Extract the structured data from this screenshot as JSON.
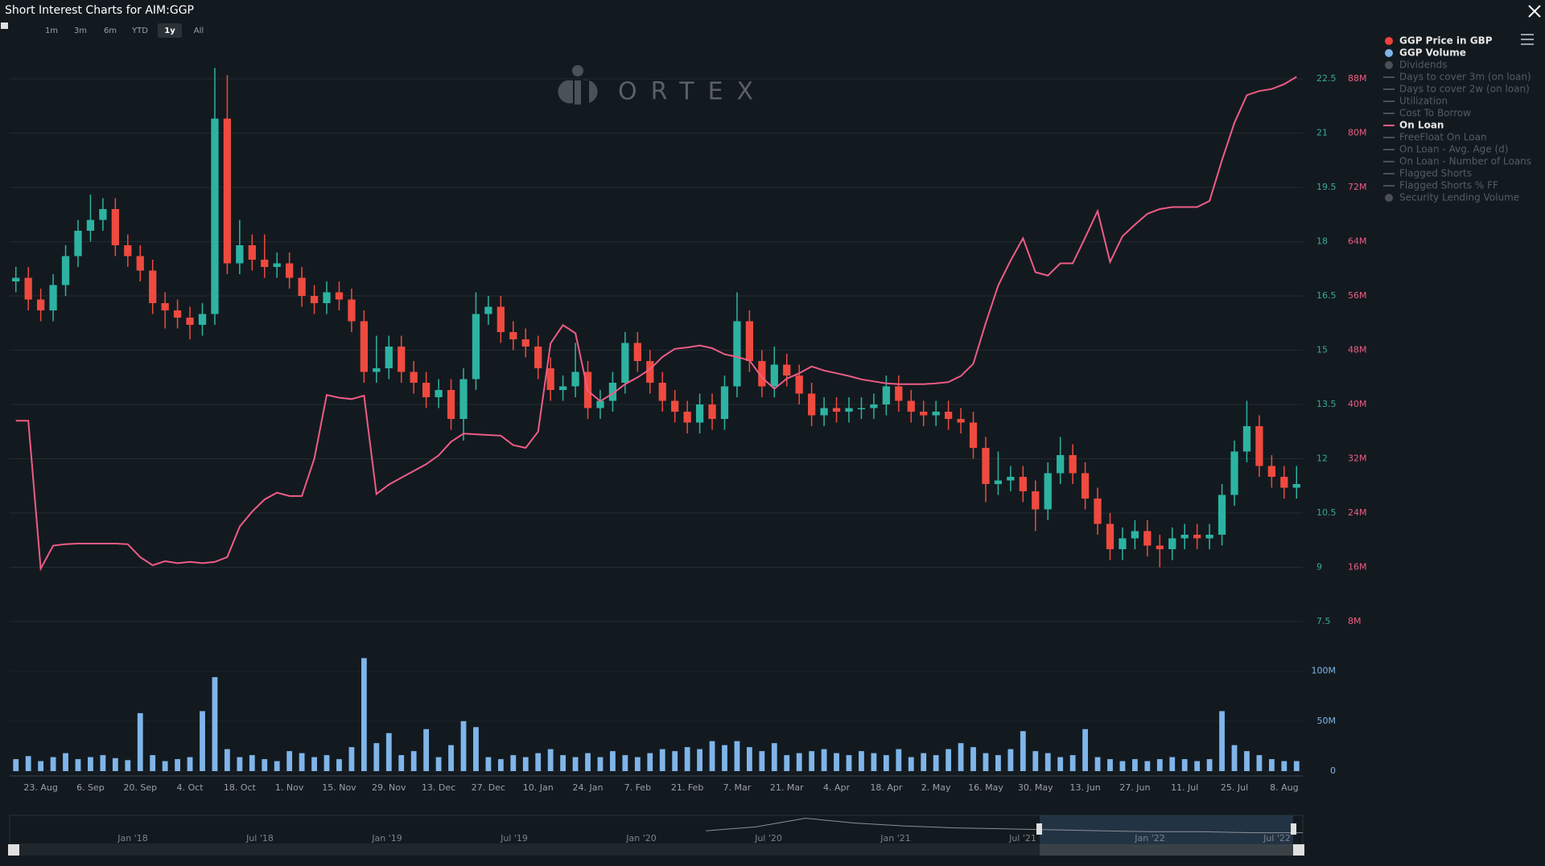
{
  "chart_data": {
    "type": "candlestick",
    "title": "Short Interest Charts for AIM:GGP",
    "watermark": "ORTEX",
    "range_buttons": [
      "1m",
      "3m",
      "6m",
      "YTD",
      "1y",
      "All"
    ],
    "selected_range": "1y",
    "categories": [
      null,
      null,
      "23. Aug",
      null,
      null,
      null,
      "6. Sep",
      null,
      null,
      null,
      "20. Sep",
      null,
      null,
      null,
      "4. Oct",
      null,
      null,
      null,
      "18. Oct",
      null,
      null,
      null,
      "1. Nov",
      null,
      null,
      null,
      "15. Nov",
      null,
      null,
      null,
      "29. Nov",
      null,
      null,
      null,
      "13. Dec",
      null,
      null,
      null,
      "27. Dec",
      null,
      null,
      null,
      "10. Jan",
      null,
      null,
      null,
      "24. Jan",
      null,
      null,
      null,
      "7. Feb",
      null,
      null,
      null,
      "21. Feb",
      null,
      null,
      null,
      "7. Mar",
      null,
      null,
      null,
      "21. Mar",
      null,
      null,
      null,
      "4. Apr",
      null,
      null,
      null,
      "18. Apr",
      null,
      null,
      null,
      "2. May",
      null,
      null,
      null,
      "16. May",
      null,
      null,
      null,
      "30. May",
      null,
      null,
      null,
      "13. Jun",
      null,
      null,
      null,
      "27. Jun",
      null,
      null,
      null,
      "11. Jul",
      null,
      null,
      null,
      "25. Jul",
      null,
      null,
      null,
      "8. Aug",
      null
    ],
    "series": [
      {
        "name": "GGP Price in GBP",
        "type": "candlestick",
        "color": "#f0413a",
        "up_color": "#2db3a2",
        "down_color": "#ef4a3f",
        "open": [
          16.9,
          17.0,
          16.4,
          16.1,
          16.8,
          17.6,
          18.3,
          18.6,
          18.9,
          17.9,
          17.6,
          17.2,
          16.3,
          16.1,
          15.9,
          15.7,
          16.0,
          21.4,
          17.4,
          17.9,
          17.5,
          17.3,
          17.4,
          17.0,
          16.5,
          16.3,
          16.6,
          16.4,
          15.8,
          14.4,
          14.5,
          15.1,
          14.4,
          14.1,
          13.7,
          13.9,
          13.1,
          14.2,
          16.0,
          16.2,
          15.5,
          15.3,
          15.1,
          14.5,
          13.9,
          14.0,
          14.4,
          13.4,
          13.6,
          14.1,
          15.2,
          14.7,
          14.1,
          13.6,
          13.3,
          13.0,
          13.5,
          13.1,
          14.0,
          15.8,
          14.7,
          14.0,
          14.6,
          14.3,
          13.8,
          13.2,
          13.4,
          13.3,
          13.4,
          13.4,
          13.5,
          14.0,
          13.6,
          13.3,
          13.2,
          13.3,
          13.1,
          13.0,
          12.3,
          11.3,
          11.4,
          11.5,
          11.1,
          10.6,
          11.6,
          12.1,
          11.6,
          10.9,
          10.2,
          9.5,
          9.8,
          10.0,
          9.6,
          9.5,
          9.8,
          9.9,
          9.8,
          9.9,
          11.0,
          12.2,
          12.9,
          11.8,
          11.5,
          11.2
        ],
        "high": [
          17.3,
          17.3,
          16.7,
          17.1,
          17.9,
          18.6,
          19.3,
          19.2,
          19.2,
          18.2,
          17.9,
          17.5,
          16.6,
          16.4,
          16.2,
          16.3,
          22.8,
          22.6,
          18.6,
          18.2,
          18.2,
          17.7,
          17.7,
          17.3,
          16.8,
          16.9,
          16.9,
          16.7,
          16.1,
          15.4,
          15.4,
          15.4,
          14.7,
          14.4,
          14.2,
          14.2,
          14.5,
          16.6,
          16.5,
          16.5,
          15.8,
          15.6,
          15.4,
          14.8,
          14.3,
          15.2,
          14.7,
          13.9,
          14.4,
          15.5,
          15.5,
          15.0,
          14.4,
          13.9,
          13.6,
          13.8,
          13.8,
          14.3,
          16.6,
          16.1,
          15.0,
          15.1,
          14.9,
          14.6,
          14.1,
          13.7,
          13.7,
          13.7,
          13.7,
          13.8,
          14.3,
          14.3,
          13.9,
          13.6,
          13.6,
          13.6,
          13.4,
          13.3,
          12.6,
          12.2,
          11.8,
          11.8,
          11.4,
          11.9,
          12.6,
          12.4,
          11.9,
          11.2,
          10.5,
          10.1,
          10.3,
          10.3,
          9.9,
          10.1,
          10.2,
          10.2,
          10.2,
          11.3,
          12.5,
          13.6,
          13.2,
          12.1,
          11.8,
          11.8
        ],
        "low": [
          16.6,
          16.1,
          15.8,
          15.8,
          16.5,
          17.3,
          18.0,
          18.3,
          17.6,
          17.3,
          16.9,
          16.0,
          15.6,
          15.6,
          15.3,
          15.4,
          15.7,
          17.1,
          17.1,
          17.2,
          17.0,
          17.0,
          16.7,
          16.2,
          16.0,
          16.0,
          16.1,
          15.5,
          14.1,
          14.1,
          14.2,
          14.1,
          13.8,
          13.4,
          13.4,
          12.8,
          12.5,
          13.9,
          15.7,
          15.2,
          15.0,
          14.8,
          14.2,
          13.6,
          13.6,
          13.7,
          13.1,
          13.1,
          13.3,
          13.8,
          14.4,
          13.8,
          13.3,
          13.0,
          12.7,
          12.7,
          12.8,
          12.8,
          13.7,
          14.4,
          13.7,
          13.7,
          14.0,
          13.5,
          12.9,
          12.9,
          13.0,
          13.0,
          13.1,
          13.1,
          13.2,
          13.3,
          13.0,
          12.9,
          12.9,
          12.8,
          12.7,
          12.0,
          10.8,
          11.0,
          11.1,
          10.8,
          10.0,
          10.3,
          11.3,
          11.3,
          10.6,
          9.9,
          9.2,
          9.2,
          9.5,
          9.3,
          9.0,
          9.2,
          9.5,
          9.5,
          9.5,
          9.6,
          10.7,
          11.9,
          11.5,
          11.2,
          10.9,
          10.9
        ],
        "close": [
          17.0,
          16.4,
          16.1,
          16.8,
          17.6,
          18.3,
          18.6,
          18.9,
          17.9,
          17.6,
          17.2,
          16.3,
          16.1,
          15.9,
          15.7,
          16.0,
          21.4,
          17.4,
          17.9,
          17.5,
          17.3,
          17.4,
          17.0,
          16.5,
          16.3,
          16.6,
          16.4,
          15.8,
          14.4,
          14.5,
          15.1,
          14.4,
          14.1,
          13.7,
          13.9,
          13.1,
          14.2,
          16.0,
          16.2,
          15.5,
          15.3,
          15.1,
          14.5,
          13.9,
          14.0,
          14.4,
          13.4,
          13.6,
          14.1,
          15.2,
          14.7,
          14.1,
          13.6,
          13.3,
          13.0,
          13.5,
          13.1,
          14.0,
          15.8,
          14.7,
          14.0,
          14.6,
          14.3,
          13.8,
          13.2,
          13.4,
          13.3,
          13.4,
          13.4,
          13.5,
          14.0,
          13.6,
          13.3,
          13.2,
          13.3,
          13.1,
          13.0,
          12.3,
          11.3,
          11.4,
          11.5,
          11.1,
          10.6,
          11.6,
          12.1,
          11.6,
          10.9,
          10.2,
          9.5,
          9.8,
          10.0,
          9.6,
          9.5,
          9.8,
          9.9,
          9.8,
          9.9,
          11.0,
          12.2,
          12.9,
          11.8,
          11.5,
          11.2,
          11.3
        ]
      },
      {
        "name": "GGP Volume",
        "type": "bar",
        "axis": "y3",
        "color": "#7fb5ea",
        "values": [
          12,
          15,
          10,
          14,
          18,
          12,
          14,
          16,
          13,
          11,
          58,
          16,
          10,
          12,
          14,
          60,
          94,
          22,
          14,
          16,
          12,
          10,
          20,
          18,
          14,
          16,
          12,
          24,
          113,
          28,
          38,
          16,
          20,
          42,
          14,
          26,
          50,
          44,
          14,
          12,
          16,
          14,
          18,
          22,
          16,
          14,
          18,
          14,
          20,
          16,
          14,
          18,
          22,
          20,
          24,
          22,
          30,
          26,
          30,
          24,
          20,
          28,
          16,
          18,
          20,
          22,
          18,
          16,
          20,
          18,
          16,
          22,
          14,
          18,
          16,
          22,
          28,
          24,
          18,
          16,
          22,
          40,
          20,
          18,
          14,
          16,
          42,
          14,
          12,
          10,
          12,
          10,
          12,
          14,
          12,
          10,
          12,
          60,
          26,
          20,
          16,
          12,
          10,
          10
        ]
      },
      {
        "name": "On Loan",
        "type": "line",
        "axis": "y2",
        "color": "#ee5c86",
        "values": [
          37.6,
          37.6,
          15.8,
          19.2,
          19.4,
          19.5,
          19.5,
          19.5,
          19.5,
          19.4,
          17.5,
          16.3,
          16.9,
          16.6,
          16.8,
          16.6,
          16.8,
          17.5,
          22.0,
          24.2,
          26.0,
          27.0,
          26.5,
          26.5,
          32.0,
          41.4,
          41.0,
          40.8,
          41.3,
          26.8,
          28.2,
          29.2,
          30.2,
          31.2,
          32.5,
          34.5,
          35.7,
          35.6,
          35.5,
          35.4,
          34.0,
          33.6,
          36.0,
          49.0,
          51.7,
          50.5,
          42.0,
          40.5,
          41.6,
          43.0,
          44.0,
          45.2,
          47.0,
          48.2,
          48.4,
          48.7,
          48.3,
          47.4,
          47.0,
          46.5,
          44.0,
          42.3,
          43.8,
          44.6,
          45.6,
          45.0,
          44.6,
          44.2,
          43.7,
          43.4,
          43.1,
          43.0,
          43.0,
          43.0,
          43.1,
          43.3,
          44.2,
          46.0,
          52.0,
          57.5,
          61.2,
          64.5,
          59.5,
          59.0,
          60.8,
          60.8,
          64.6,
          68.5,
          61.0,
          64.8,
          66.5,
          68.1,
          68.8,
          69.1,
          69.1,
          69.1,
          70.0,
          76.0,
          81.5,
          85.6,
          86.2,
          86.5,
          87.2,
          88.3
        ]
      }
    ],
    "inactive_series": [
      {
        "name": "Dividends",
        "symbol": "dot"
      },
      {
        "name": "Days to cover 3m (on loan)",
        "symbol": "line"
      },
      {
        "name": "Days to cover 2w (on loan)",
        "symbol": "line"
      },
      {
        "name": "Utilization",
        "symbol": "line"
      },
      {
        "name": "Cost To Borrow",
        "symbol": "line"
      },
      {
        "name": "FreeFloat On Loan",
        "symbol": "line"
      },
      {
        "name": "On Loan - Avg. Age (d)",
        "symbol": "line"
      },
      {
        "name": "On Loan - Number of Loans",
        "symbol": "line"
      },
      {
        "name": "Flagged Shorts",
        "symbol": "line"
      },
      {
        "name": "Flagged Shorts % FF",
        "symbol": "line"
      },
      {
        "name": "Security Lending Volume",
        "symbol": "dot"
      }
    ],
    "legend": "right",
    "grid": true,
    "ylim": [
      7.5,
      24.3
    ],
    "yticks": [
      7.5,
      9,
      10.5,
      12,
      13.5,
      15,
      16.5,
      18,
      19.5,
      21,
      22.5
    ],
    "y2lim": [
      8,
      97.6
    ],
    "y2ticks": [
      {
        "value": 8,
        "label": "8M"
      },
      {
        "value": 16,
        "label": "16M"
      },
      {
        "value": 24,
        "label": "24M"
      },
      {
        "value": 32,
        "label": "32M"
      },
      {
        "value": 40,
        "label": "40M"
      },
      {
        "value": 48,
        "label": "48M"
      },
      {
        "value": 56,
        "label": "56M"
      },
      {
        "value": 64,
        "label": "64M"
      },
      {
        "value": 72,
        "label": "72M"
      },
      {
        "value": 80,
        "label": "80M"
      },
      {
        "value": 88,
        "label": "88M"
      }
    ],
    "y3lim": [
      0,
      115
    ],
    "y3ticks": [
      0,
      {
        "value": 50,
        "label": "50M"
      },
      {
        "value": 100,
        "label": "100M"
      }
    ],
    "navigator": {
      "labels": [
        "Jan '18",
        "Jul '18",
        "Jan '19",
        "Jul '19",
        "Jan '20",
        "Jul '20",
        "Jan '21",
        "Jul '21",
        "Jan '22",
        "Jul '22"
      ],
      "ylim": [
        0,
        30
      ],
      "values": [
        null,
        null,
        null,
        null,
        null,
        null,
        null,
        null,
        null,
        null,
        null,
        null,
        null,
        null,
        14,
        18,
        27,
        22,
        19,
        17,
        16,
        15,
        14,
        13,
        13,
        12,
        12
      ]
    }
  }
}
